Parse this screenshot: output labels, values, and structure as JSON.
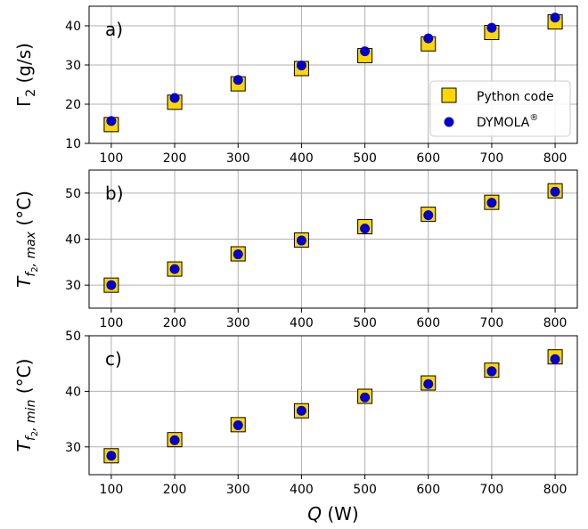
{
  "colors": {
    "python_fill": "#ffd700",
    "python_edge": "#000000",
    "dymola_fill": "#0000cc",
    "grid": "#b0b0b0"
  },
  "legend": {
    "python_label": "Python code",
    "dymola_label": "DYMOLA",
    "dymola_superscript": "®",
    "placement": "center-right"
  },
  "x_axis_title": {
    "italic": "Q",
    "rest": " (W)"
  },
  "chart_data": [
    {
      "type": "scatter",
      "panel": "a)",
      "ylabel_main": "Γ",
      "ylabel_sub": "2",
      "ylabel_rest": " (g/s)",
      "x": [
        100,
        200,
        300,
        400,
        500,
        600,
        700,
        800
      ],
      "xlim": [
        65,
        835
      ],
      "ylim": [
        10,
        45
      ],
      "yticks": [
        10,
        20,
        30,
        40
      ],
      "xticks": [
        100,
        200,
        300,
        400,
        500,
        600,
        700,
        800
      ],
      "grid": true,
      "series": [
        {
          "name": "Python code",
          "marker": "square",
          "values": [
            14.8,
            20.5,
            25.2,
            29.1,
            32.4,
            35.4,
            38.3,
            41.0
          ]
        },
        {
          "name": "DYMOLA®",
          "marker": "circle",
          "values": [
            15.7,
            21.6,
            26.2,
            29.9,
            33.5,
            36.8,
            39.5,
            42.1
          ]
        }
      ]
    },
    {
      "type": "scatter",
      "panel": "b)",
      "ylabel_main": "T",
      "ylabel_sub": "f",
      "ylabel_subsub": "2",
      "ylabel_sub_rest": ", max",
      "ylabel_rest": " (°C)",
      "x": [
        100,
        200,
        300,
        400,
        500,
        600,
        700,
        800
      ],
      "xlim": [
        65,
        835
      ],
      "ylim": [
        25,
        55
      ],
      "yticks": [
        30,
        40,
        50
      ],
      "xticks": [
        100,
        200,
        300,
        400,
        500,
        600,
        700,
        800
      ],
      "grid": true,
      "series": [
        {
          "name": "Python code",
          "marker": "square",
          "values": [
            30.0,
            33.5,
            36.8,
            39.8,
            42.7,
            45.4,
            48.0,
            50.5
          ]
        },
        {
          "name": "DYMOLA®",
          "marker": "circle",
          "values": [
            30.0,
            33.5,
            36.7,
            39.7,
            42.3,
            45.2,
            47.9,
            50.3
          ]
        }
      ]
    },
    {
      "type": "scatter",
      "panel": "c)",
      "ylabel_main": "T",
      "ylabel_sub": "f",
      "ylabel_subsub": "2",
      "ylabel_sub_rest": ", min",
      "ylabel_rest": " (°C)",
      "x": [
        100,
        200,
        300,
        400,
        500,
        600,
        700,
        800
      ],
      "xlim": [
        65,
        835
      ],
      "ylim": [
        25,
        50
      ],
      "yticks": [
        30,
        40,
        50
      ],
      "xticks": [
        100,
        200,
        300,
        400,
        500,
        600,
        700,
        800
      ],
      "grid": true,
      "series": [
        {
          "name": "Python code",
          "marker": "square",
          "values": [
            28.4,
            31.3,
            34.0,
            36.5,
            39.1,
            41.5,
            43.8,
            46.2
          ]
        },
        {
          "name": "DYMOLA®",
          "marker": "circle",
          "values": [
            28.4,
            31.2,
            33.9,
            36.5,
            38.9,
            41.3,
            43.6,
            45.8
          ]
        }
      ]
    }
  ]
}
